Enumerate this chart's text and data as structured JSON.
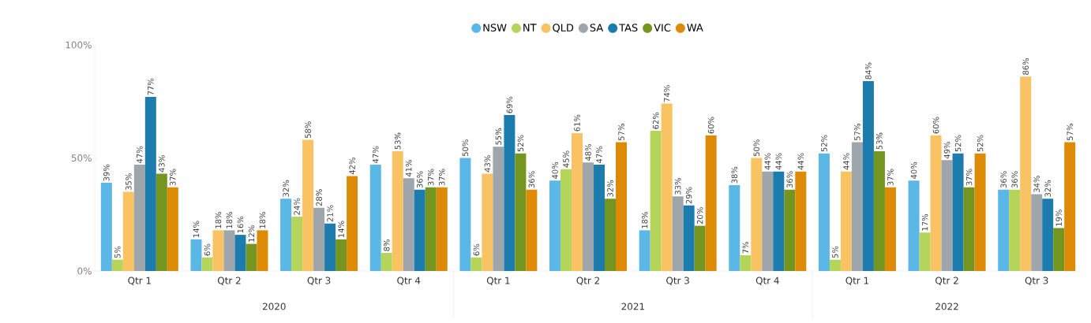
{
  "chart_data": {
    "type": "bar",
    "legend": "top",
    "ylim": [
      0,
      100
    ],
    "yticks": [
      {
        "value": 0,
        "label": "0%"
      },
      {
        "value": 50,
        "label": "50%"
      },
      {
        "value": 100,
        "label": "100%"
      }
    ],
    "categories": [
      "Qtr 1",
      "Qtr 2",
      "Qtr 3",
      "Qtr 4",
      "Qtr 1",
      "Qtr 2",
      "Qtr 3",
      "Qtr 4",
      "Qtr 1",
      "Qtr 2",
      "Qtr 3"
    ],
    "annotations": [
      "2020",
      "2021",
      "2022"
    ],
    "series": [
      {
        "name": "NSW",
        "color": "#5bb7e5",
        "values": [
          39,
          14,
          32,
          47,
          50,
          40,
          18,
          38,
          52,
          40,
          36
        ],
        "value_labels": [
          "39%",
          "14%",
          "32%",
          "47%",
          "50%",
          "40%",
          "18%",
          "38%",
          "52%",
          "40%",
          "36%"
        ]
      },
      {
        "name": "NT",
        "color": "#b5d55a",
        "values": [
          5,
          6,
          24,
          8,
          6,
          45,
          62,
          7,
          5,
          17,
          36
        ],
        "value_labels": [
          "5%",
          "6%",
          "24%",
          "8%",
          "6%",
          "45%",
          "62%",
          "7%",
          "5%",
          "17%",
          "36%"
        ]
      },
      {
        "name": "QLD",
        "color": "#f9c262",
        "values": [
          35,
          18,
          58,
          53,
          43,
          61,
          74,
          50,
          44,
          60,
          86
        ],
        "value_labels": [
          "35%",
          "18%",
          "58%",
          "53%",
          "43%",
          "61%",
          "74%",
          "50%",
          "44%",
          "60%",
          "86%"
        ]
      },
      {
        "name": "SA",
        "color": "#9ea5ab",
        "values": [
          47,
          18,
          28,
          41,
          55,
          48,
          33,
          44,
          57,
          49,
          34
        ],
        "value_labels": [
          "47%",
          "18%",
          "28%",
          "41%",
          "55%",
          "48%",
          "33%",
          "44%",
          "57%",
          "49%",
          "34%"
        ]
      },
      {
        "name": "TAS",
        "color": "#1c7cae",
        "values": [
          77,
          16,
          21,
          36,
          69,
          47,
          29,
          44,
          84,
          52,
          32
        ],
        "value_labels": [
          "77%",
          "16%",
          "21%",
          "36%",
          "69%",
          "47%",
          "29%",
          "44%",
          "84%",
          "52%",
          "32%"
        ]
      },
      {
        "name": "VIC",
        "color": "#74951f",
        "values": [
          43,
          12,
          14,
          37,
          52,
          32,
          20,
          36,
          53,
          37,
          19
        ],
        "value_labels": [
          "43%",
          "12%",
          "14%",
          "37%",
          "52%",
          "32%",
          "20%",
          "36%",
          "53%",
          "37%",
          "19%"
        ]
      },
      {
        "name": "WA",
        "color": "#dd8a06",
        "values": [
          37,
          18,
          42,
          37,
          36,
          57,
          60,
          44,
          37,
          52,
          57
        ],
        "value_labels": [
          "37%",
          "18%",
          "42%",
          "37%",
          "36%",
          "57%",
          "60%",
          "44%",
          "37%",
          "52%",
          "57%"
        ]
      }
    ]
  }
}
